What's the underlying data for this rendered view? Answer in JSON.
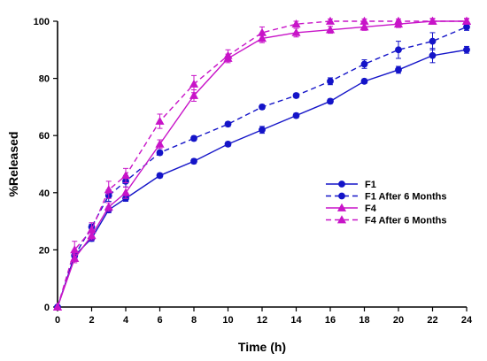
{
  "chart_data": {
    "type": "line",
    "xlabel": "Time (h)",
    "ylabel": "%Released",
    "xlim": [
      0,
      24
    ],
    "ylim": [
      0,
      100
    ],
    "xticks": [
      0,
      2,
      4,
      6,
      8,
      10,
      12,
      14,
      16,
      18,
      20,
      22,
      24
    ],
    "yticks": [
      0,
      20,
      40,
      60,
      80,
      100
    ],
    "grid": false,
    "legend_position": "center-right",
    "series": [
      {
        "name": "F1",
        "color": "#1414c8",
        "dash": "solid",
        "marker": "circle",
        "x": [
          0,
          1,
          2,
          3,
          4,
          6,
          8,
          10,
          12,
          14,
          16,
          18,
          20,
          22,
          24
        ],
        "y": [
          0,
          18,
          24,
          34,
          38,
          46,
          51,
          57,
          62,
          67,
          72,
          79,
          83,
          88,
          90
        ],
        "err": [
          0,
          1,
          1,
          1,
          1,
          0.8,
          0.8,
          0.8,
          1.2,
          0.8,
          0.8,
          0.8,
          1.2,
          2.5,
          1.2
        ]
      },
      {
        "name": "F1 After 6 Months",
        "color": "#1414c8",
        "dash": "dashed",
        "marker": "circle",
        "x": [
          0,
          1,
          2,
          3,
          4,
          6,
          8,
          10,
          12,
          14,
          16,
          18,
          20,
          22,
          24
        ],
        "y": [
          0,
          18,
          28,
          39,
          44,
          54,
          59,
          64,
          70,
          74,
          79,
          85,
          90,
          93,
          98
        ],
        "err": [
          0,
          1,
          1,
          2,
          2,
          0.8,
          0.8,
          0.8,
          0.8,
          0.8,
          1.2,
          1.5,
          3,
          3,
          1.2
        ]
      },
      {
        "name": "F4",
        "color": "#c814c8",
        "dash": "solid",
        "marker": "triangle",
        "x": [
          0,
          1,
          2,
          3,
          4,
          6,
          8,
          10,
          12,
          14,
          16,
          18,
          20,
          22,
          24
        ],
        "y": [
          0,
          17,
          25,
          35,
          40,
          57,
          74,
          87,
          94,
          96,
          97,
          98,
          99,
          100,
          100
        ],
        "err": [
          0,
          1.5,
          1.5,
          1.5,
          2,
          1.5,
          2,
          1.5,
          1.5,
          1.5,
          1.2,
          1.2,
          1.2,
          1,
          1
        ]
      },
      {
        "name": "F4 After 6 Months",
        "color": "#c814c8",
        "dash": "dashed",
        "marker": "triangle",
        "x": [
          0,
          1,
          2,
          3,
          4,
          6,
          8,
          10,
          12,
          14,
          16,
          18,
          20,
          22,
          24
        ],
        "y": [
          0,
          20,
          27,
          41,
          46,
          65,
          78,
          88,
          96,
          99,
          100,
          100,
          100,
          100,
          100
        ],
        "err": [
          0,
          3,
          2.5,
          3,
          2.5,
          2.5,
          3,
          2,
          2,
          1,
          0.8,
          0.8,
          0.8,
          0.8,
          0.8
        ]
      }
    ]
  }
}
